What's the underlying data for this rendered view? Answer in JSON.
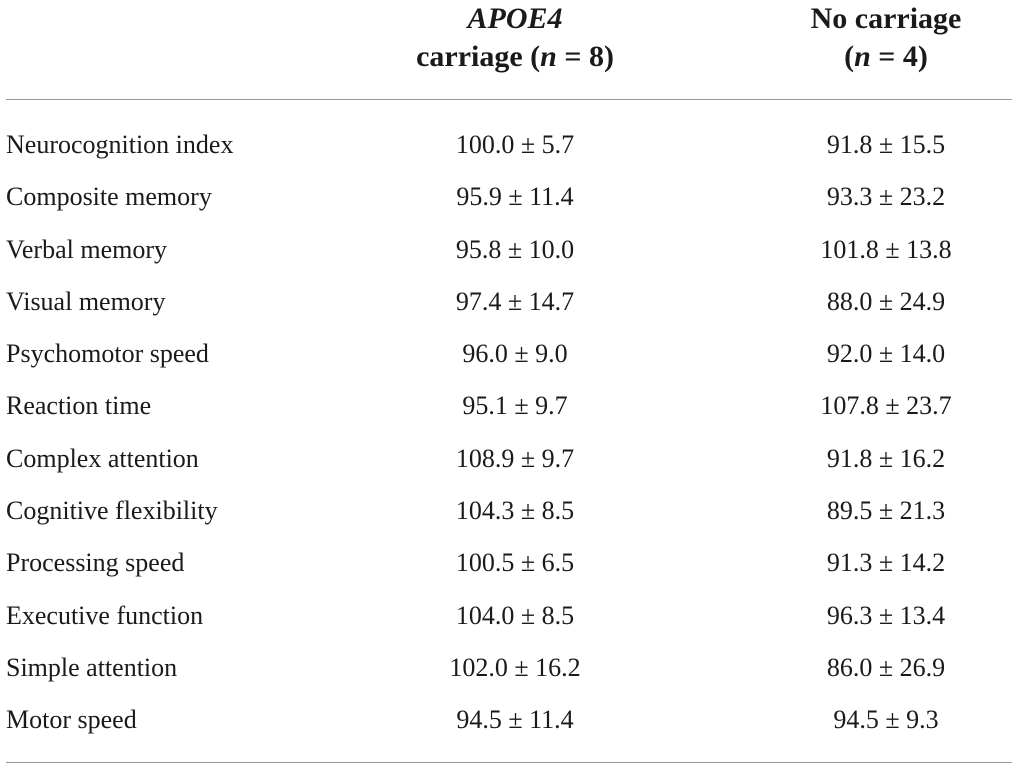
{
  "table": {
    "columns": [
      {
        "line1": "APOE4",
        "line2_prefix": "carriage (",
        "line2_n": "n",
        "line2_suffix": " = 8)"
      },
      {
        "line1": "No carriage",
        "line2_prefix": "(",
        "line2_n": "n",
        "line2_suffix": " = 4)"
      }
    ],
    "rows": [
      {
        "label": "Neurocognition index",
        "apoe4": "100.0 ± 5.7",
        "no_carriage": "91.8 ± 15.5"
      },
      {
        "label": "Composite memory",
        "apoe4": "95.9 ± 11.4",
        "no_carriage": "93.3 ± 23.2"
      },
      {
        "label": "Verbal memory",
        "apoe4": "95.8 ± 10.0",
        "no_carriage": "101.8 ± 13.8"
      },
      {
        "label": "Visual memory",
        "apoe4": "97.4 ± 14.7",
        "no_carriage": "88.0 ± 24.9"
      },
      {
        "label": "Psychomotor speed",
        "apoe4": "96.0 ± 9.0",
        "no_carriage": "92.0 ± 14.0"
      },
      {
        "label": "Reaction time",
        "apoe4": "95.1 ± 9.7",
        "no_carriage": "107.8 ± 23.7"
      },
      {
        "label": "Complex attention",
        "apoe4": "108.9 ± 9.7",
        "no_carriage": "91.8 ± 16.2"
      },
      {
        "label": "Cognitive flexibility",
        "apoe4": "104.3 ± 8.5",
        "no_carriage": "89.5 ± 21.3"
      },
      {
        "label": "Processing speed",
        "apoe4": "100.5 ± 6.5",
        "no_carriage": "91.3 ± 14.2"
      },
      {
        "label": "Executive function",
        "apoe4": "104.0 ± 8.5",
        "no_carriage": "96.3 ± 13.4"
      },
      {
        "label": "Simple attention",
        "apoe4": "102.0 ± 16.2",
        "no_carriage": "86.0 ± 26.9"
      },
      {
        "label": "Motor speed",
        "apoe4": "94.5 ± 11.4",
        "no_carriage": "94.5 ± 9.3"
      }
    ]
  }
}
